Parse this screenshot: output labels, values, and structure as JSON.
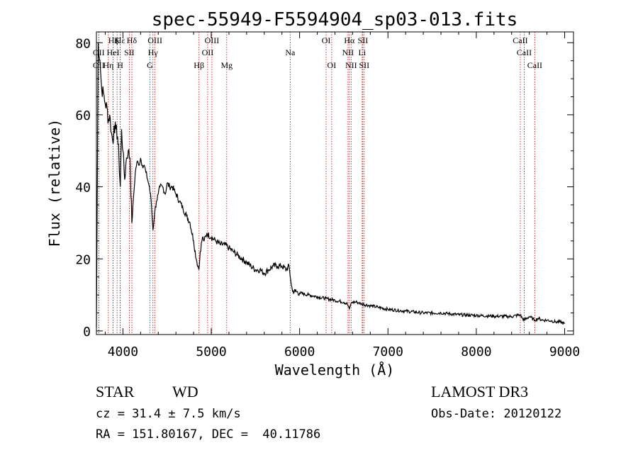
{
  "header": {
    "title": "spec-55949-F5594904_sp03-013.fits"
  },
  "info": {
    "class_label": "STAR",
    "subclass_label": "WD",
    "survey_label": "LAMOST DR3",
    "redshift_text": "cz = 31.4 ± 7.5 km/s",
    "obs_date_text": "Obs-Date: 20120122",
    "coords_text": "RA = 151.80167, DEC =  40.11786"
  },
  "chart_data": {
    "type": "line",
    "title": "spec-55949-F5594904_sp03-013.fits",
    "xlabel": "Wavelength (Å)",
    "ylabel": "Flux (relative)",
    "xlim": [
      3700,
      9100
    ],
    "ylim": [
      -1,
      83
    ],
    "xticks": [
      4000,
      5000,
      6000,
      7000,
      8000,
      9000
    ],
    "yticks": [
      0,
      20,
      40,
      60,
      80
    ],
    "line_color": "#000000",
    "marker_color": "#cc0000",
    "series": [
      {
        "name": "flux",
        "x": [
          3700,
          3720,
          3740,
          3760,
          3780,
          3800,
          3820,
          3835,
          3850,
          3870,
          3889,
          3900,
          3920,
          3940,
          3955,
          3970,
          3985,
          4000,
          4020,
          4040,
          4060,
          4080,
          4101,
          4120,
          4140,
          4160,
          4180,
          4200,
          4220,
          4240,
          4260,
          4280,
          4300,
          4320,
          4340,
          4360,
          4380,
          4400,
          4420,
          4450,
          4480,
          4500,
          4530,
          4560,
          4600,
          4640,
          4680,
          4720,
          4760,
          4800,
          4830,
          4850,
          4861,
          4875,
          4900,
          4920,
          4950,
          5000,
          5050,
          5100,
          5150,
          5200,
          5250,
          5300,
          5350,
          5400,
          5450,
          5500,
          5550,
          5600,
          5650,
          5700,
          5750,
          5800,
          5850,
          5880,
          5900,
          5920,
          5950,
          6000,
          6100,
          6200,
          6300,
          6400,
          6500,
          6540,
          6563,
          6580,
          6600,
          6650,
          6700,
          6800,
          6900,
          7000,
          7200,
          7400,
          7600,
          7800,
          8000,
          8200,
          8400,
          8498,
          8520,
          8542,
          8600,
          8662,
          8700,
          8750,
          8800,
          8850,
          8900,
          8950,
          9000
        ],
        "y": [
          1,
          80,
          75,
          67,
          66,
          63,
          62,
          58,
          60,
          55,
          52,
          57,
          56,
          54,
          48,
          40,
          56,
          50,
          42,
          48,
          50,
          48,
          30,
          37,
          44,
          47,
          46,
          48,
          46,
          46,
          44,
          42,
          40,
          36,
          28,
          33,
          36,
          38,
          40,
          40,
          38,
          41,
          40,
          40,
          38,
          36,
          34,
          32,
          30,
          25,
          20,
          18,
          17,
          22,
          26,
          25,
          27,
          26,
          25,
          24,
          24,
          23,
          22,
          21,
          20,
          19,
          18,
          17,
          17,
          16,
          17,
          18,
          18,
          18,
          17,
          18,
          14,
          11,
          11,
          10.5,
          10,
          9.5,
          9,
          8.5,
          8,
          7.5,
          6,
          7.5,
          8,
          8,
          7.5,
          7,
          6.5,
          6,
          5.5,
          5,
          5,
          4.5,
          4.3,
          4.1,
          4,
          4.5,
          3.5,
          3,
          4,
          3,
          3.5,
          3,
          3,
          2.8,
          2.5,
          2.5,
          2
        ]
      }
    ],
    "lines": [
      {
        "label": "Hε",
        "wl": 3970,
        "row": 0
      },
      {
        "label": "OII",
        "wl": 3727,
        "row": 1
      },
      {
        "label": "OII",
        "wl": 3727,
        "row": 2
      },
      {
        "label": "Hζ",
        "wl": 3889,
        "row": 0
      },
      {
        "label": "K",
        "wl": 3934,
        "row": 0
      },
      {
        "label": "HeI",
        "wl": 3889,
        "row": 1
      },
      {
        "label": "SII",
        "wl": 4072,
        "row": 1
      },
      {
        "label": "Hη",
        "wl": 3835,
        "row": 2
      },
      {
        "label": "H",
        "wl": 3969,
        "row": 2
      },
      {
        "label": "Hδ",
        "wl": 4101,
        "row": 0
      },
      {
        "label": "OIII",
        "wl": 4363,
        "row": 0
      },
      {
        "label": "Hγ",
        "wl": 4340,
        "row": 1
      },
      {
        "label": "G",
        "wl": 4305,
        "row": 2
      },
      {
        "label": "OIII",
        "wl": 5007,
        "row": 0
      },
      {
        "label": "OII",
        "wl": 4959,
        "row": 1
      },
      {
        "label": "Hβ",
        "wl": 4861,
        "row": 2
      },
      {
        "label": "Mg",
        "wl": 5175,
        "row": 2
      },
      {
        "label": "Na",
        "wl": 5893,
        "row": 1
      },
      {
        "label": "OI",
        "wl": 6300,
        "row": 0
      },
      {
        "label": "OI",
        "wl": 6363,
        "row": 2
      },
      {
        "label": "Hα",
        "wl": 6563,
        "row": 0
      },
      {
        "label": "SII",
        "wl": 6716,
        "row": 0
      },
      {
        "label": "NII",
        "wl": 6548,
        "row": 1
      },
      {
        "label": "Li",
        "wl": 6708,
        "row": 1
      },
      {
        "label": "NII",
        "wl": 6583,
        "row": 2
      },
      {
        "label": "SII",
        "wl": 6731,
        "row": 2
      },
      {
        "label": "CaII",
        "wl": 8498,
        "row": 0
      },
      {
        "label": "CaII",
        "wl": 8542,
        "row": 1
      },
      {
        "label": "CaII",
        "wl": 8662,
        "row": 2
      }
    ]
  }
}
